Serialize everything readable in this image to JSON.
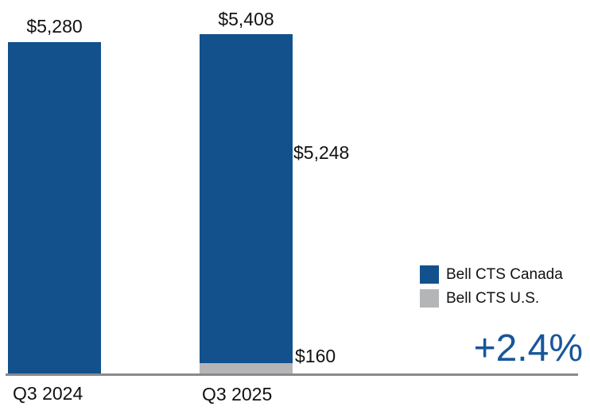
{
  "chart_data": {
    "type": "bar",
    "subtype": "stacked",
    "orientation": "vertical",
    "categories": [
      "Q3 2024",
      "Q3 2025"
    ],
    "series": [
      {
        "name": "Bell CTS Canada",
        "color": "#13518c",
        "values": [
          5280,
          5248
        ]
      },
      {
        "name": "Bell CTS U.S.",
        "color": "#b4b5b7",
        "values": [
          0,
          160
        ]
      }
    ],
    "bar_total_labels": [
      "$5,280",
      "$5,408"
    ],
    "segment_labels": [
      {
        "text": "$5,248",
        "series": "Bell CTS Canada",
        "category": "Q3 2025"
      },
      {
        "text": "$160",
        "series": "Bell CTS U.S.",
        "category": "Q3 2025"
      }
    ],
    "growth_label": "+2.4%",
    "growth_color": "#17569b",
    "axis_line_color": "#8a8a8c",
    "legend": [
      "Bell CTS Canada",
      "Bell CTS U.S."
    ],
    "legend_position": "right",
    "ylim": [
      0,
      5408
    ],
    "grid": false,
    "title": "",
    "xlabel": "",
    "ylabel": ""
  }
}
